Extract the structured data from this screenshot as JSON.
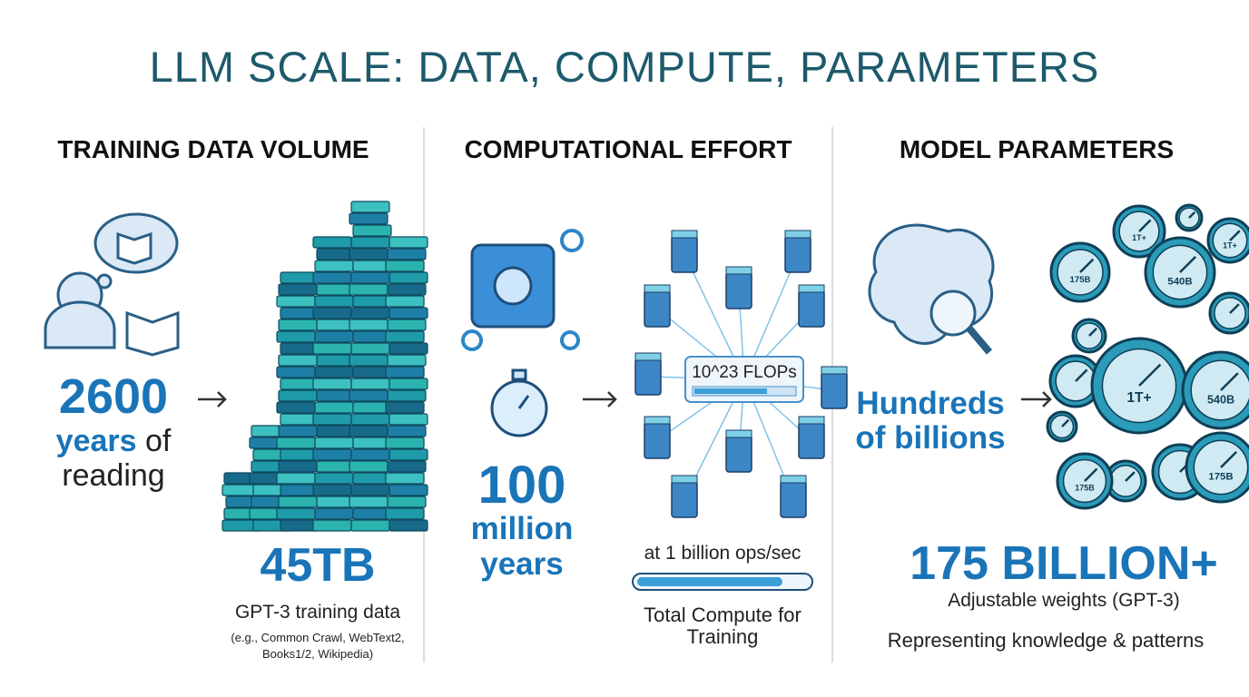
{
  "title": "LLM SCALE: DATA, COMPUTE, PARAMETERS",
  "panels": [
    {
      "heading": "TRAINING DATA VOLUME",
      "stat_number": "2600",
      "stat_unit": "years",
      "stat_rest": "of",
      "stat_line2": "reading",
      "big": "45TB",
      "caption": "GPT-3 training data",
      "note": "(e.g., Common Crawl, WebText2, Books1/2, Wikipedia)"
    },
    {
      "heading": "COMPUTATIONAL EFFORT",
      "stat_number": "100",
      "stat_unit": "million",
      "stat_line2": "years",
      "flops": "10^23 FLOPs",
      "rate": "at 1 billion ops/sec",
      "caption": "Total Compute for Training"
    },
    {
      "heading": "MODEL PARAMETERS",
      "stat_line1": "Hundreds",
      "stat_line2": "of billions",
      "big": "175 BILLION+",
      "caption": "Adjustable weights (GPT-3)",
      "note": "Representing knowledge & patterns"
    }
  ],
  "gauge_labels": [
    "1T+",
    "1T+",
    "175B",
    "540B",
    "1T+",
    "540B",
    "175B",
    "175B"
  ]
}
